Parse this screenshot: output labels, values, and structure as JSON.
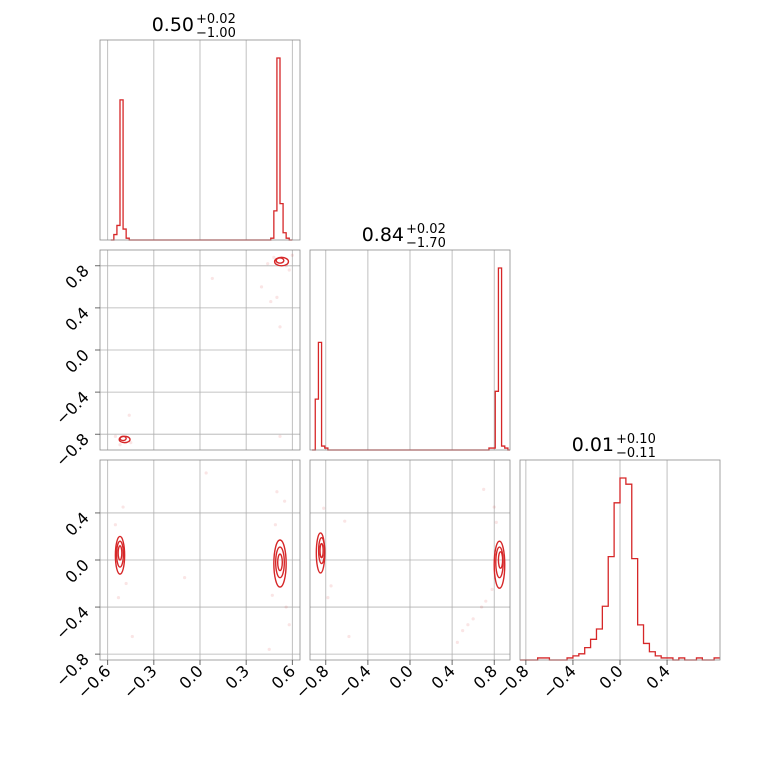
{
  "chart_data": {
    "type": "corner",
    "color": "#d62728",
    "parameters": [
      {
        "title": {
          "median": "0.50",
          "plus": "+0.02",
          "minus": "−1.00"
        },
        "range": [
          -0.65,
          0.65
        ],
        "ticks": [
          -0.6,
          -0.3,
          0.0,
          0.3,
          0.6
        ],
        "tick_labels": [
          "−0.6",
          "−0.3",
          "0.0",
          "0.3",
          "0.6"
        ],
        "histogram": {
          "edges": [
            -0.58,
            -0.56,
            -0.54,
            -0.52,
            -0.5,
            -0.48,
            -0.46,
            -0.44,
            0.44,
            0.46,
            0.48,
            0.5,
            0.52,
            0.54,
            0.56,
            0.58,
            0.6
          ],
          "heights": [
            0,
            0.03,
            0.08,
            0.77,
            0.06,
            0.01,
            0,
            0,
            0,
            0.01,
            0.16,
            1.0,
            0.2,
            0.04,
            0.01,
            0
          ]
        }
      },
      {
        "title": {
          "median": "0.84",
          "plus": "+0.02",
          "minus": "−1.70"
        },
        "range": [
          -0.95,
          0.95
        ],
        "ticks": [
          -0.8,
          -0.4,
          0.0,
          0.4,
          0.8
        ],
        "tick_labels": [
          "−0.8",
          "−0.4",
          "0.0",
          "0.4",
          "0.8"
        ],
        "histogram": {
          "edges": [
            -0.93,
            -0.9,
            -0.87,
            -0.84,
            -0.81,
            -0.78,
            0.72,
            0.75,
            0.78,
            0.81,
            0.84,
            0.87,
            0.9,
            0.93,
            0.95
          ],
          "heights": [
            0,
            0.26,
            0.55,
            0.02,
            0.01,
            0,
            0,
            0.01,
            0.01,
            0.3,
            0.93,
            0.02,
            0.01,
            0,
            0
          ]
        }
      },
      {
        "title": {
          "median": "0.01",
          "plus": "+0.10",
          "minus": "−0.11"
        },
        "range": [
          -0.85,
          0.85
        ],
        "ticks": [
          -0.8,
          -0.4,
          0.0,
          0.4
        ],
        "tick_labels": [
          "−0.8",
          "−0.4",
          "0.0",
          "0.4"
        ],
        "histogram": {
          "edges": [
            -0.85,
            -0.8,
            -0.75,
            -0.7,
            -0.65,
            -0.6,
            -0.55,
            -0.5,
            -0.45,
            -0.4,
            -0.35,
            -0.3,
            -0.25,
            -0.2,
            -0.15,
            -0.1,
            -0.05,
            0.0,
            0.05,
            0.1,
            0.15,
            0.2,
            0.25,
            0.3,
            0.35,
            0.4,
            0.45,
            0.5,
            0.55,
            0.6,
            0.65,
            0.7,
            0.75,
            0.8,
            0.85
          ],
          "heights": [
            0,
            0,
            0,
            0.01,
            0.01,
            0,
            0,
            0,
            0.01,
            0.02,
            0.03,
            0.06,
            0.1,
            0.15,
            0.26,
            0.5,
            0.76,
            0.88,
            0.85,
            0.49,
            0.17,
            0.08,
            0.04,
            0.02,
            0.01,
            0.01,
            0,
            0.01,
            0,
            0,
            0.01,
            0,
            0,
            0.01
          ]
        }
      }
    ],
    "joint_panels": [
      {
        "x_param": 0,
        "y_param": 1,
        "contours": [
          {
            "cx": 0.52,
            "cy": 0.85,
            "rx": 0.025,
            "ry": 0.025
          },
          {
            "cx": 0.53,
            "cy": 0.84,
            "rx": 0.045,
            "ry": 0.04
          },
          {
            "cx": -0.5,
            "cy": -0.84,
            "rx": 0.02,
            "ry": 0.02
          },
          {
            "cx": -0.49,
            "cy": -0.85,
            "rx": 0.035,
            "ry": 0.03
          }
        ],
        "scatter": [
          [
            0.48,
            0.88
          ],
          [
            0.56,
            0.8
          ],
          [
            0.58,
            0.76
          ],
          [
            0.44,
            0.82
          ],
          [
            0.6,
            0.9
          ],
          [
            0.46,
            0.46
          ],
          [
            0.5,
            0.5
          ],
          [
            0.08,
            0.68
          ],
          [
            0.52,
            0.22
          ],
          [
            0.52,
            -0.82
          ],
          [
            -0.46,
            -0.62
          ],
          [
            -0.52,
            -0.9
          ],
          [
            -0.55,
            -0.82
          ],
          [
            -0.45,
            -0.88
          ],
          [
            0.4,
            0.6
          ]
        ]
      },
      {
        "x_param": 0,
        "y_param": 2,
        "contours": [
          {
            "cx": -0.52,
            "cy": 0.06,
            "rx": 0.012,
            "ry": 0.06
          },
          {
            "cx": -0.52,
            "cy": 0.05,
            "rx": 0.022,
            "ry": 0.11
          },
          {
            "cx": -0.52,
            "cy": 0.04,
            "rx": 0.03,
            "ry": 0.16
          },
          {
            "cx": 0.52,
            "cy": -0.02,
            "rx": 0.015,
            "ry": 0.07
          },
          {
            "cx": 0.52,
            "cy": -0.02,
            "rx": 0.028,
            "ry": 0.13
          },
          {
            "cx": 0.52,
            "cy": -0.03,
            "rx": 0.04,
            "ry": 0.2
          }
        ],
        "scatter": [
          [
            -0.5,
            0.45
          ],
          [
            -0.53,
            -0.32
          ],
          [
            -0.44,
            -0.65
          ],
          [
            -0.55,
            0.3
          ],
          [
            -0.48,
            -0.2
          ],
          [
            0.04,
            0.74
          ],
          [
            -0.1,
            -0.15
          ],
          [
            0.5,
            0.58
          ],
          [
            0.45,
            -0.76
          ],
          [
            0.55,
            0.5
          ],
          [
            0.58,
            -0.55
          ],
          [
            0.49,
            0.3
          ],
          [
            0.56,
            -0.4
          ],
          [
            0.47,
            -0.3
          ]
        ]
      },
      {
        "x_param": 1,
        "y_param": 2,
        "contours": [
          {
            "cx": -0.84,
            "cy": 0.08,
            "rx": 0.015,
            "ry": 0.06
          },
          {
            "cx": -0.84,
            "cy": 0.08,
            "rx": 0.028,
            "ry": 0.11
          },
          {
            "cx": -0.85,
            "cy": 0.06,
            "rx": 0.04,
            "ry": 0.17
          },
          {
            "cx": 0.86,
            "cy": 0.0,
            "rx": 0.02,
            "ry": 0.07
          },
          {
            "cx": 0.85,
            "cy": -0.02,
            "rx": 0.035,
            "ry": 0.13
          },
          {
            "cx": 0.85,
            "cy": -0.04,
            "rx": 0.05,
            "ry": 0.2
          }
        ],
        "scatter": [
          [
            -0.62,
            0.33
          ],
          [
            -0.75,
            -0.22
          ],
          [
            -0.58,
            -0.65
          ],
          [
            -0.82,
            0.44
          ],
          [
            -0.78,
            -0.32
          ],
          [
            0.7,
            0.6
          ],
          [
            0.8,
            0.45
          ],
          [
            0.72,
            -0.35
          ],
          [
            0.6,
            -0.5
          ],
          [
            0.5,
            -0.6
          ],
          [
            0.45,
            -0.7
          ],
          [
            0.78,
            -0.25
          ],
          [
            0.82,
            0.32
          ],
          [
            0.68,
            -0.4
          ],
          [
            0.55,
            -0.55
          ]
        ]
      }
    ]
  }
}
